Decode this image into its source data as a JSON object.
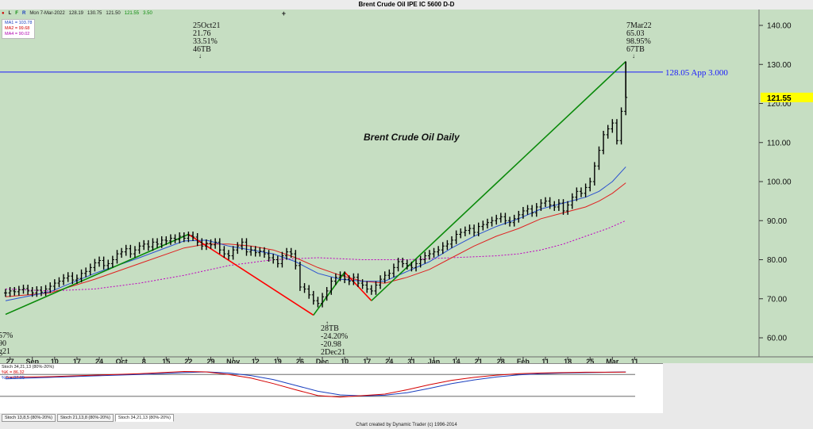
{
  "title": "Brent Crude Oil IPE IC 5600 D-D",
  "toolbar": {
    "icons": [
      "dot-icon",
      "L",
      "F",
      "R"
    ],
    "date": "Mon 7-Mar-2022",
    "open": "128.19",
    "high": "130.75",
    "low": "121.50",
    "close": "121.55",
    "change": "3.50",
    "plus": "+"
  },
  "ma_legend": [
    {
      "label": "MA1 = 103.78",
      "color": "#1a3fbf"
    },
    {
      "label": "MA2 = 99.68",
      "color": "#d40000"
    },
    {
      "label": "MA4 = 90.02",
      "color": "#b000b0"
    }
  ],
  "chart_title": "Brent Crude Oil Daily",
  "price_axis": [
    "140.00",
    "130.00",
    "120.00",
    "110.00",
    "100.00",
    "90.00",
    "80.00",
    "70.00",
    "60.00"
  ],
  "current_price_label": "121.55",
  "hline_label": "128.05 App 3.000",
  "date_axis": [
    {
      "label": "27",
      "pos": 1
    },
    {
      "label": "Sep",
      "pos": 6
    },
    {
      "label": "10",
      "pos": 11
    },
    {
      "label": "17",
      "pos": 16
    },
    {
      "label": "24",
      "pos": 21
    },
    {
      "label": "Oct",
      "pos": 26
    },
    {
      "label": "8",
      "pos": 31
    },
    {
      "label": "15",
      "pos": 36
    },
    {
      "label": "22",
      "pos": 41
    },
    {
      "label": "29",
      "pos": 46
    },
    {
      "label": "Nov",
      "pos": 51
    },
    {
      "label": "12",
      "pos": 56
    },
    {
      "label": "19",
      "pos": 61
    },
    {
      "label": "26",
      "pos": 66
    },
    {
      "label": "Dec",
      "pos": 71
    },
    {
      "label": "10",
      "pos": 76
    },
    {
      "label": "17",
      "pos": 81
    },
    {
      "label": "24",
      "pos": 86
    },
    {
      "label": "31",
      "pos": 91
    },
    {
      "label": "Jan",
      "pos": 96
    },
    {
      "label": "14",
      "pos": 101
    },
    {
      "label": "21",
      "pos": 106
    },
    {
      "label": "28",
      "pos": 111
    },
    {
      "label": "Feb",
      "pos": 116
    },
    {
      "label": "11",
      "pos": 121
    },
    {
      "label": "18",
      "pos": 126
    },
    {
      "label": "25",
      "pos": 131
    },
    {
      "label": "Mar",
      "pos": 136
    },
    {
      "label": "11",
      "pos": 141
    }
  ],
  "annotations": {
    "oct_high": [
      "25Oct21",
      "21.76",
      "33.51%",
      "46TB"
    ],
    "mar_high": [
      "7Mar22",
      "65.03",
      "98.95%",
      "67TB"
    ],
    "dec_low": [
      "28TB",
      "-24.20%",
      "-20.98",
      "2Dec21"
    ],
    "left_cut": [
      "57%",
      "90",
      "g21"
    ]
  },
  "stoch_legend": [
    {
      "label": "Stoch 34,21,13 (80%-20%)",
      "color": "#222222"
    },
    {
      "label": "%K = 86.32",
      "color": "#d40000"
    },
    {
      "label": "%D = 87.05",
      "color": "#1a3fbf"
    }
  ],
  "tabs": [
    "Stoch 13,8,5 (80%-20%)",
    "Stoch 21,13,8 (80%-20%)",
    "Stoch 34,21,13 (80%-20%)"
  ],
  "footer": "Chart created by Dynamic Trader  (c) 1996-2014",
  "chart_data": {
    "type": "line",
    "title": "Brent Crude Oil Daily",
    "ylim": [
      55,
      145
    ],
    "xlim": [
      0,
      143
    ],
    "close_series": [
      {
        "x": 0,
        "y": 71.5
      },
      {
        "x": 1,
        "y": 72.0
      },
      {
        "x": 2,
        "y": 71.8
      },
      {
        "x": 3,
        "y": 72.3
      },
      {
        "x": 4,
        "y": 72.6
      },
      {
        "x": 5,
        "y": 72.0
      },
      {
        "x": 6,
        "y": 71.5
      },
      {
        "x": 7,
        "y": 72.2
      },
      {
        "x": 8,
        "y": 71.7
      },
      {
        "x": 9,
        "y": 72.5
      },
      {
        "x": 10,
        "y": 73.2
      },
      {
        "x": 11,
        "y": 74.0
      },
      {
        "x": 12,
        "y": 74.5
      },
      {
        "x": 13,
        "y": 75.3
      },
      {
        "x": 14,
        "y": 75.8
      },
      {
        "x": 15,
        "y": 74.8
      },
      {
        "x": 16,
        "y": 75.2
      },
      {
        "x": 17,
        "y": 76.5
      },
      {
        "x": 18,
        "y": 77.0
      },
      {
        "x": 19,
        "y": 78.0
      },
      {
        "x": 20,
        "y": 79.2
      },
      {
        "x": 21,
        "y": 79.8
      },
      {
        "x": 22,
        "y": 78.5
      },
      {
        "x": 23,
        "y": 79.0
      },
      {
        "x": 24,
        "y": 80.0
      },
      {
        "x": 25,
        "y": 81.5
      },
      {
        "x": 26,
        "y": 82.0
      },
      {
        "x": 27,
        "y": 82.8
      },
      {
        "x": 28,
        "y": 81.5
      },
      {
        "x": 29,
        "y": 82.5
      },
      {
        "x": 30,
        "y": 83.5
      },
      {
        "x": 31,
        "y": 84.0
      },
      {
        "x": 32,
        "y": 83.3
      },
      {
        "x": 33,
        "y": 84.5
      },
      {
        "x": 34,
        "y": 84.0
      },
      {
        "x": 35,
        "y": 85.0
      },
      {
        "x": 36,
        "y": 84.8
      },
      {
        "x": 37,
        "y": 85.5
      },
      {
        "x": 38,
        "y": 85.2
      },
      {
        "x": 39,
        "y": 86.0
      },
      {
        "x": 40,
        "y": 85.5
      },
      {
        "x": 41,
        "y": 86.2
      },
      {
        "x": 42,
        "y": 85.8
      },
      {
        "x": 43,
        "y": 84.5
      },
      {
        "x": 44,
        "y": 83.5
      },
      {
        "x": 45,
        "y": 84.2
      },
      {
        "x": 46,
        "y": 83.8
      },
      {
        "x": 47,
        "y": 84.5
      },
      {
        "x": 48,
        "y": 82.5
      },
      {
        "x": 49,
        "y": 81.5
      },
      {
        "x": 50,
        "y": 81.0
      },
      {
        "x": 51,
        "y": 82.5
      },
      {
        "x": 52,
        "y": 83.5
      },
      {
        "x": 53,
        "y": 84.5
      },
      {
        "x": 54,
        "y": 82.0
      },
      {
        "x": 55,
        "y": 82.5
      },
      {
        "x": 56,
        "y": 81.8
      },
      {
        "x": 57,
        "y": 82.2
      },
      {
        "x": 58,
        "y": 81.5
      },
      {
        "x": 59,
        "y": 80.5
      },
      {
        "x": 60,
        "y": 80.0
      },
      {
        "x": 61,
        "y": 79.0
      },
      {
        "x": 62,
        "y": 81.0
      },
      {
        "x": 63,
        "y": 82.0
      },
      {
        "x": 64,
        "y": 81.5
      },
      {
        "x": 65,
        "y": 78.5
      },
      {
        "x": 66,
        "y": 73.0
      },
      {
        "x": 67,
        "y": 72.5
      },
      {
        "x": 68,
        "y": 71.0
      },
      {
        "x": 69,
        "y": 69.5
      },
      {
        "x": 70,
        "y": 68.8
      },
      {
        "x": 71,
        "y": 70.5
      },
      {
        "x": 72,
        "y": 72.0
      },
      {
        "x": 73,
        "y": 74.5
      },
      {
        "x": 74,
        "y": 75.5
      },
      {
        "x": 75,
        "y": 76.0
      },
      {
        "x": 76,
        "y": 75.0
      },
      {
        "x": 77,
        "y": 74.5
      },
      {
        "x": 78,
        "y": 75.5
      },
      {
        "x": 79,
        "y": 74.0
      },
      {
        "x": 80,
        "y": 73.5
      },
      {
        "x": 81,
        "y": 72.5
      },
      {
        "x": 82,
        "y": 72.0
      },
      {
        "x": 83,
        "y": 73.5
      },
      {
        "x": 84,
        "y": 75.0
      },
      {
        "x": 85,
        "y": 76.0
      },
      {
        "x": 86,
        "y": 76.5
      },
      {
        "x": 87,
        "y": 78.0
      },
      {
        "x": 88,
        "y": 79.5
      },
      {
        "x": 89,
        "y": 79.0
      },
      {
        "x": 90,
        "y": 78.5
      },
      {
        "x": 91,
        "y": 78.0
      },
      {
        "x": 92,
        "y": 79.0
      },
      {
        "x": 93,
        "y": 80.0
      },
      {
        "x": 94,
        "y": 81.0
      },
      {
        "x": 95,
        "y": 81.5
      },
      {
        "x": 96,
        "y": 82.0
      },
      {
        "x": 97,
        "y": 82.5
      },
      {
        "x": 98,
        "y": 83.5
      },
      {
        "x": 99,
        "y": 84.0
      },
      {
        "x": 100,
        "y": 85.0
      },
      {
        "x": 101,
        "y": 86.5
      },
      {
        "x": 102,
        "y": 87.0
      },
      {
        "x": 103,
        "y": 87.5
      },
      {
        "x": 104,
        "y": 88.0
      },
      {
        "x": 105,
        "y": 87.0
      },
      {
        "x": 106,
        "y": 88.5
      },
      {
        "x": 107,
        "y": 89.0
      },
      {
        "x": 108,
        "y": 89.5
      },
      {
        "x": 109,
        "y": 90.0
      },
      {
        "x": 110,
        "y": 90.5
      },
      {
        "x": 111,
        "y": 91.0
      },
      {
        "x": 112,
        "y": 90.0
      },
      {
        "x": 113,
        "y": 89.5
      },
      {
        "x": 114,
        "y": 90.5
      },
      {
        "x": 115,
        "y": 91.5
      },
      {
        "x": 116,
        "y": 92.5
      },
      {
        "x": 117,
        "y": 93.0
      },
      {
        "x": 118,
        "y": 92.0
      },
      {
        "x": 119,
        "y": 93.5
      },
      {
        "x": 120,
        "y": 94.5
      },
      {
        "x": 121,
        "y": 95.0
      },
      {
        "x": 122,
        "y": 94.0
      },
      {
        "x": 123,
        "y": 93.5
      },
      {
        "x": 124,
        "y": 94.5
      },
      {
        "x": 125,
        "y": 92.5
      },
      {
        "x": 126,
        "y": 94.0
      },
      {
        "x": 127,
        "y": 96.0
      },
      {
        "x": 128,
        "y": 97.5
      },
      {
        "x": 129,
        "y": 97.0
      },
      {
        "x": 130,
        "y": 98.5
      },
      {
        "x": 131,
        "y": 100.0
      },
      {
        "x": 132,
        "y": 104.0
      },
      {
        "x": 133,
        "y": 108.0
      },
      {
        "x": 134,
        "y": 112.0
      },
      {
        "x": 135,
        "y": 113.5
      },
      {
        "x": 136,
        "y": 115.0
      },
      {
        "x": 137,
        "y": 110.5
      },
      {
        "x": 138,
        "y": 118.0
      },
      {
        "x": 139,
        "y": 121.55
      }
    ],
    "ma1_series": [
      {
        "x": 0,
        "y": 69.5
      },
      {
        "x": 10,
        "y": 71.8
      },
      {
        "x": 20,
        "y": 76.5
      },
      {
        "x": 30,
        "y": 80.5
      },
      {
        "x": 40,
        "y": 84.8
      },
      {
        "x": 45,
        "y": 85.0
      },
      {
        "x": 50,
        "y": 83.5
      },
      {
        "x": 55,
        "y": 82.5
      },
      {
        "x": 60,
        "y": 81.5
      },
      {
        "x": 65,
        "y": 79.5
      },
      {
        "x": 70,
        "y": 76.5
      },
      {
        "x": 75,
        "y": 75.0
      },
      {
        "x": 80,
        "y": 74.5
      },
      {
        "x": 85,
        "y": 74.5
      },
      {
        "x": 90,
        "y": 77.0
      },
      {
        "x": 95,
        "y": 79.5
      },
      {
        "x": 100,
        "y": 83.0
      },
      {
        "x": 105,
        "y": 86.0
      },
      {
        "x": 110,
        "y": 88.5
      },
      {
        "x": 115,
        "y": 90.5
      },
      {
        "x": 120,
        "y": 93.0
      },
      {
        "x": 125,
        "y": 94.5
      },
      {
        "x": 130,
        "y": 96.0
      },
      {
        "x": 133,
        "y": 97.5
      },
      {
        "x": 136,
        "y": 100.0
      },
      {
        "x": 139,
        "y": 103.78
      }
    ],
    "ma2_series": [
      {
        "x": 0,
        "y": 70.5
      },
      {
        "x": 10,
        "y": 71.5
      },
      {
        "x": 20,
        "y": 75.0
      },
      {
        "x": 30,
        "y": 79.0
      },
      {
        "x": 40,
        "y": 83.0
      },
      {
        "x": 45,
        "y": 84.0
      },
      {
        "x": 50,
        "y": 84.0
      },
      {
        "x": 55,
        "y": 83.5
      },
      {
        "x": 60,
        "y": 82.5
      },
      {
        "x": 65,
        "y": 80.5
      },
      {
        "x": 70,
        "y": 78.0
      },
      {
        "x": 75,
        "y": 76.0
      },
      {
        "x": 80,
        "y": 74.5
      },
      {
        "x": 85,
        "y": 74.0
      },
      {
        "x": 90,
        "y": 75.5
      },
      {
        "x": 95,
        "y": 77.5
      },
      {
        "x": 100,
        "y": 80.5
      },
      {
        "x": 105,
        "y": 83.5
      },
      {
        "x": 110,
        "y": 86.0
      },
      {
        "x": 115,
        "y": 88.0
      },
      {
        "x": 120,
        "y": 90.5
      },
      {
        "x": 125,
        "y": 92.0
      },
      {
        "x": 130,
        "y": 93.5
      },
      {
        "x": 133,
        "y": 95.0
      },
      {
        "x": 136,
        "y": 97.0
      },
      {
        "x": 139,
        "y": 99.68
      }
    ],
    "ma4_series": [
      {
        "x": 0,
        "y": 72.5
      },
      {
        "x": 10,
        "y": 72.0
      },
      {
        "x": 20,
        "y": 72.5
      },
      {
        "x": 30,
        "y": 74.0
      },
      {
        "x": 40,
        "y": 76.0
      },
      {
        "x": 50,
        "y": 78.5
      },
      {
        "x": 60,
        "y": 80.0
      },
      {
        "x": 70,
        "y": 80.5
      },
      {
        "x": 80,
        "y": 80.0
      },
      {
        "x": 90,
        "y": 80.0
      },
      {
        "x": 100,
        "y": 80.5
      },
      {
        "x": 110,
        "y": 81.0
      },
      {
        "x": 115,
        "y": 81.5
      },
      {
        "x": 120,
        "y": 82.5
      },
      {
        "x": 125,
        "y": 84.0
      },
      {
        "x": 130,
        "y": 86.0
      },
      {
        "x": 135,
        "y": 88.0
      },
      {
        "x": 139,
        "y": 90.02
      }
    ],
    "swing_lines": [
      {
        "color": "#0a8a0a",
        "points": [
          {
            "x": 0,
            "y": 66.0
          },
          {
            "x": 41,
            "y": 86.5
          }
        ]
      },
      {
        "color": "#ff0000",
        "points": [
          {
            "x": 41,
            "y": 86.5
          },
          {
            "x": 69,
            "y": 65.8
          }
        ]
      },
      {
        "color": "#0a8a0a",
        "points": [
          {
            "x": 69,
            "y": 65.8
          },
          {
            "x": 76,
            "y": 76.8
          }
        ]
      },
      {
        "color": "#ff0000",
        "points": [
          {
            "x": 76,
            "y": 76.8
          },
          {
            "x": 82,
            "y": 69.5
          }
        ]
      },
      {
        "color": "#0a8a0a",
        "points": [
          {
            "x": 82,
            "y": 69.5
          },
          {
            "x": 139,
            "y": 130.75
          }
        ]
      }
    ],
    "hline": {
      "y": 128.05,
      "color": "#1a1aff"
    },
    "stoch_k": [
      {
        "x": 0,
        "y": 72
      },
      {
        "x": 10,
        "y": 74
      },
      {
        "x": 20,
        "y": 78
      },
      {
        "x": 30,
        "y": 82
      },
      {
        "x": 40,
        "y": 88
      },
      {
        "x": 45,
        "y": 87
      },
      {
        "x": 50,
        "y": 80
      },
      {
        "x": 55,
        "y": 70
      },
      {
        "x": 60,
        "y": 55
      },
      {
        "x": 65,
        "y": 38
      },
      {
        "x": 70,
        "y": 22
      },
      {
        "x": 75,
        "y": 18
      },
      {
        "x": 80,
        "y": 22
      },
      {
        "x": 85,
        "y": 26
      },
      {
        "x": 90,
        "y": 38
      },
      {
        "x": 95,
        "y": 52
      },
      {
        "x": 100,
        "y": 64
      },
      {
        "x": 105,
        "y": 72
      },
      {
        "x": 110,
        "y": 78
      },
      {
        "x": 115,
        "y": 82
      },
      {
        "x": 120,
        "y": 84
      },
      {
        "x": 125,
        "y": 85
      },
      {
        "x": 130,
        "y": 86
      },
      {
        "x": 135,
        "y": 86
      },
      {
        "x": 139,
        "y": 86.32
      }
    ],
    "stoch_d": [
      {
        "x": 0,
        "y": 68
      },
      {
        "x": 10,
        "y": 72
      },
      {
        "x": 20,
        "y": 76
      },
      {
        "x": 30,
        "y": 80
      },
      {
        "x": 40,
        "y": 85
      },
      {
        "x": 45,
        "y": 87
      },
      {
        "x": 50,
        "y": 84
      },
      {
        "x": 55,
        "y": 77
      },
      {
        "x": 60,
        "y": 66
      },
      {
        "x": 65,
        "y": 50
      },
      {
        "x": 70,
        "y": 34
      },
      {
        "x": 75,
        "y": 24
      },
      {
        "x": 80,
        "y": 21
      },
      {
        "x": 85,
        "y": 23
      },
      {
        "x": 90,
        "y": 30
      },
      {
        "x": 95,
        "y": 42
      },
      {
        "x": 100,
        "y": 55
      },
      {
        "x": 105,
        "y": 65
      },
      {
        "x": 110,
        "y": 73
      },
      {
        "x": 115,
        "y": 79
      },
      {
        "x": 120,
        "y": 82
      },
      {
        "x": 125,
        "y": 84
      },
      {
        "x": 130,
        "y": 85
      },
      {
        "x": 135,
        "y": 86
      },
      {
        "x": 139,
        "y": 87.05
      }
    ],
    "stoch_bands": [
      80,
      20
    ]
  }
}
